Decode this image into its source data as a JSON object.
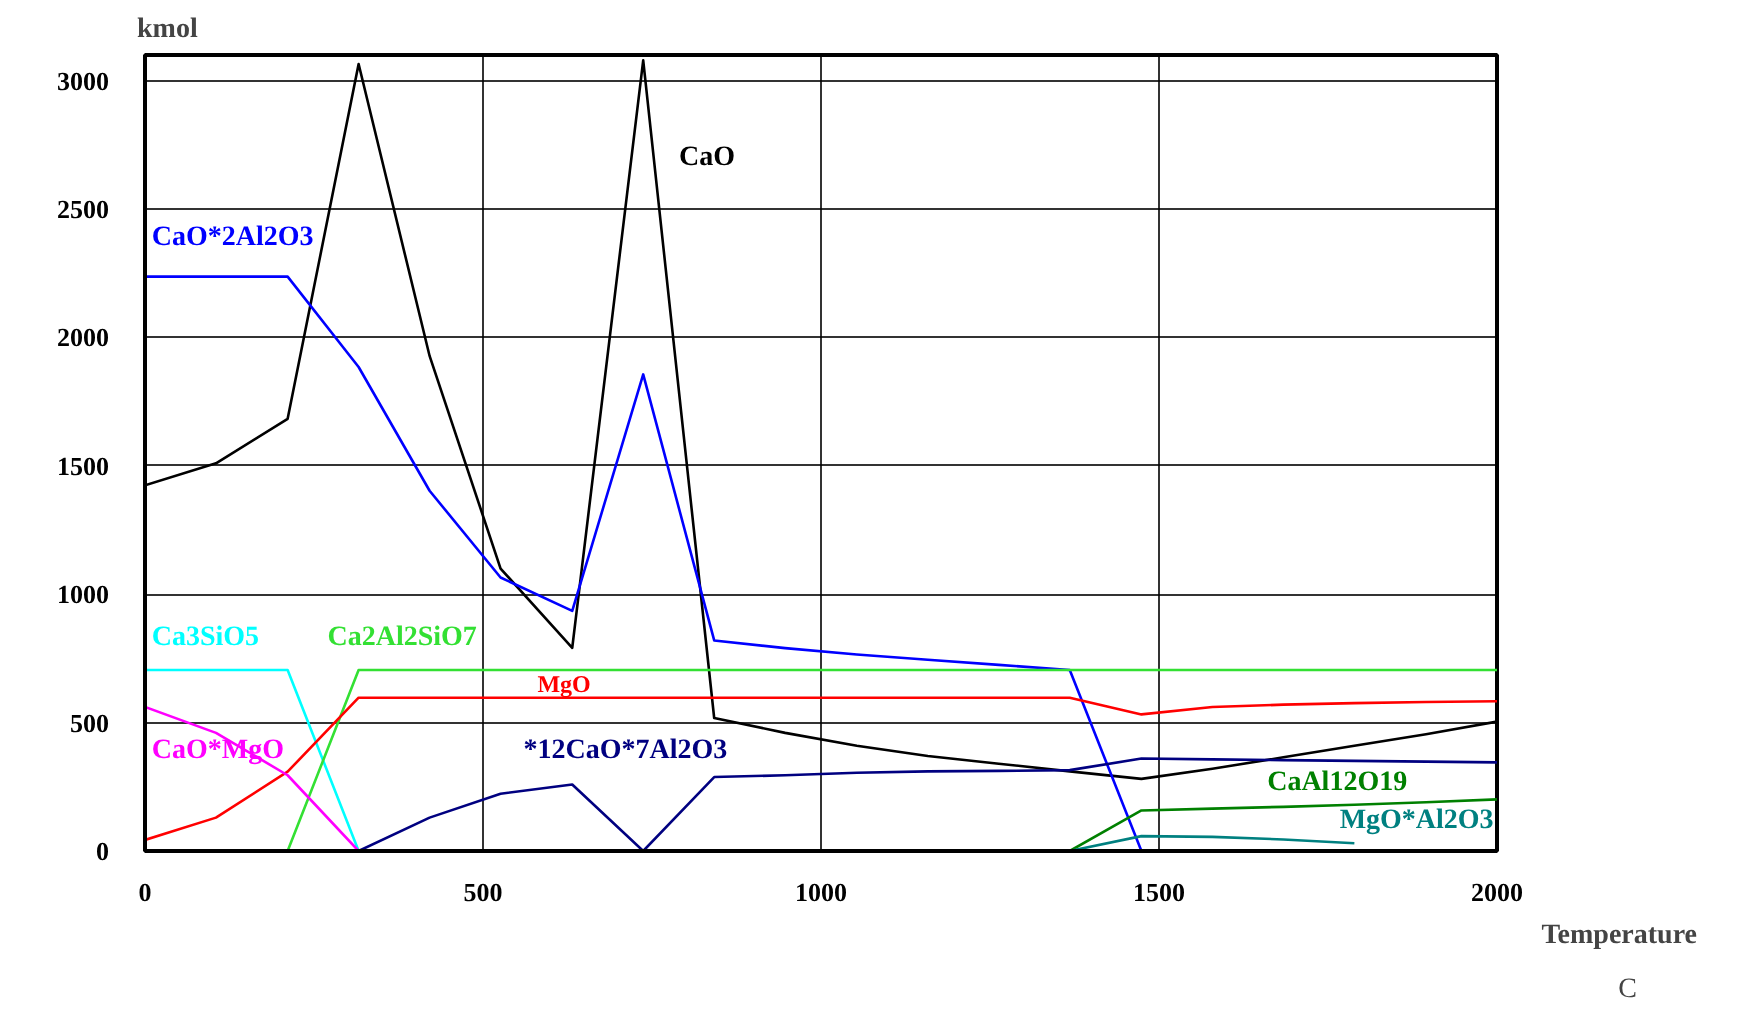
{
  "chart_data": {
    "type": "line",
    "x": [
      0,
      105,
      211,
      316,
      421,
      526,
      632,
      737,
      842,
      947,
      1053,
      1158,
      1263,
      1368,
      1474,
      1579,
      1684,
      1789,
      1895,
      2000
    ],
    "xlabel": "Temperature\nC",
    "ylabel": "kmol",
    "xlim": [
      0,
      2000
    ],
    "xticks": [
      0,
      500,
      1000,
      1500,
      2000
    ],
    "ylim": [
      0,
      3100
    ],
    "yticks": [
      0,
      500,
      1000,
      1500,
      2000,
      2500,
      3000
    ],
    "grid": true,
    "marker": "none",
    "line_style": "solid",
    "series": [
      {
        "name": "CaO",
        "color": "#000000",
        "values": [
          1424,
          1510,
          1683,
          3065,
          1928,
          1100,
          791,
          3079,
          518,
          460,
          410,
          370,
          340,
          310,
          281,
          320,
          365,
          410,
          455,
          504
        ]
      },
      {
        "name": "CaO*2Al2O3",
        "color": "#0000ff",
        "values": [
          2237,
          2237,
          2237,
          1885,
          1403,
          1065,
          935,
          1856,
          820,
          790,
          765,
          745,
          725,
          705,
          0,
          null,
          null,
          null,
          null,
          null
        ]
      },
      {
        "name": "Ca3SiO5",
        "color": "#00ffff",
        "values": [
          705,
          705,
          705,
          0,
          null,
          null,
          null,
          null,
          null,
          null,
          null,
          null,
          null,
          null,
          null,
          null,
          null,
          null,
          null,
          null
        ]
      },
      {
        "name": "Ca2Al2SiO7",
        "color": "#33e033",
        "values": [
          null,
          null,
          0,
          705,
          705,
          705,
          705,
          705,
          705,
          705,
          705,
          705,
          705,
          705,
          705,
          705,
          705,
          705,
          705,
          705
        ]
      },
      {
        "name": "MgO",
        "color": "#ff0000",
        "values": [
          43,
          130,
          309,
          597,
          597,
          597,
          597,
          597,
          597,
          597,
          597,
          597,
          597,
          597,
          532,
          561,
          570,
          576,
          580,
          583
        ]
      },
      {
        "name": "CaO*MgO",
        "color": "#ff00ff",
        "values": [
          561,
          460,
          295,
          0,
          null,
          null,
          null,
          null,
          null,
          null,
          null,
          null,
          null,
          null,
          null,
          null,
          null,
          null,
          null,
          null
        ]
      },
      {
        "name": "*12CaO*7Al2O3",
        "color": "#000080",
        "values": [
          null,
          null,
          null,
          0,
          130,
          223,
          259,
          0,
          288,
          295,
          305,
          310,
          312,
          315,
          360,
          357,
          354,
          351,
          348,
          345
        ]
      },
      {
        "name": "CaAl12O19",
        "color": "#008000",
        "values": [
          null,
          null,
          null,
          null,
          null,
          null,
          null,
          null,
          null,
          null,
          null,
          null,
          null,
          0,
          158,
          165,
          172,
          180,
          190,
          201
        ]
      },
      {
        "name": "MgO*Al2O3",
        "color": "#008080",
        "values": [
          null,
          null,
          null,
          null,
          null,
          null,
          null,
          null,
          null,
          null,
          null,
          null,
          null,
          0,
          58,
          55,
          45,
          30,
          null,
          null
        ]
      }
    ]
  }
}
